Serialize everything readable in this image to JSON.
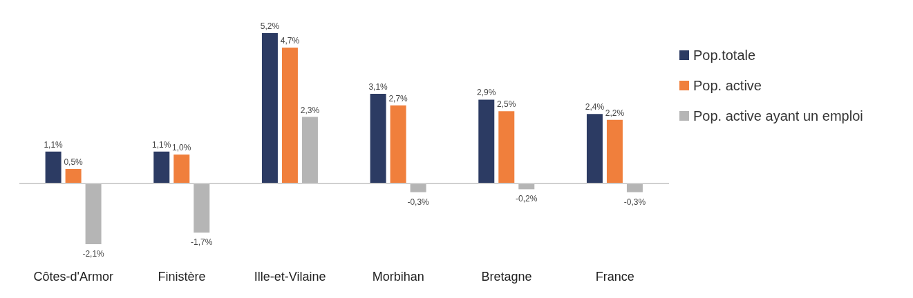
{
  "chart_data": {
    "type": "bar",
    "categories": [
      "Côtes-d'Armor",
      "Finistère",
      "Ille-et-Vilaine",
      "Morbihan",
      "Bretagne",
      "France"
    ],
    "series": [
      {
        "name": "Pop.totale",
        "color": "#2c3b63",
        "values": [
          1.1,
          1.1,
          5.2,
          3.1,
          2.9,
          2.4
        ],
        "value_labels": [
          "1,1%",
          "1,1%",
          "5,2%",
          "3,1%",
          "2,9%",
          "2,4%"
        ]
      },
      {
        "name": "Pop. active",
        "color": "#f07f3c",
        "values": [
          0.5,
          1.0,
          4.7,
          2.7,
          2.5,
          2.2
        ],
        "value_labels": [
          "0,5%",
          "1,0%",
          "4,7%",
          "2,7%",
          "2,5%",
          "2,2%"
        ]
      },
      {
        "name": "Pop. active ayant un emploi",
        "color": "#b5b5b5",
        "values": [
          -2.1,
          -1.7,
          2.3,
          -0.3,
          -0.2,
          -0.3
        ],
        "value_labels": [
          "-2,1%",
          "-1,7%",
          "2,3%",
          "-0,3%",
          "-0,2%",
          "-0,3%"
        ]
      }
    ],
    "tick_labels": "x",
    "legend": "top right"
  }
}
